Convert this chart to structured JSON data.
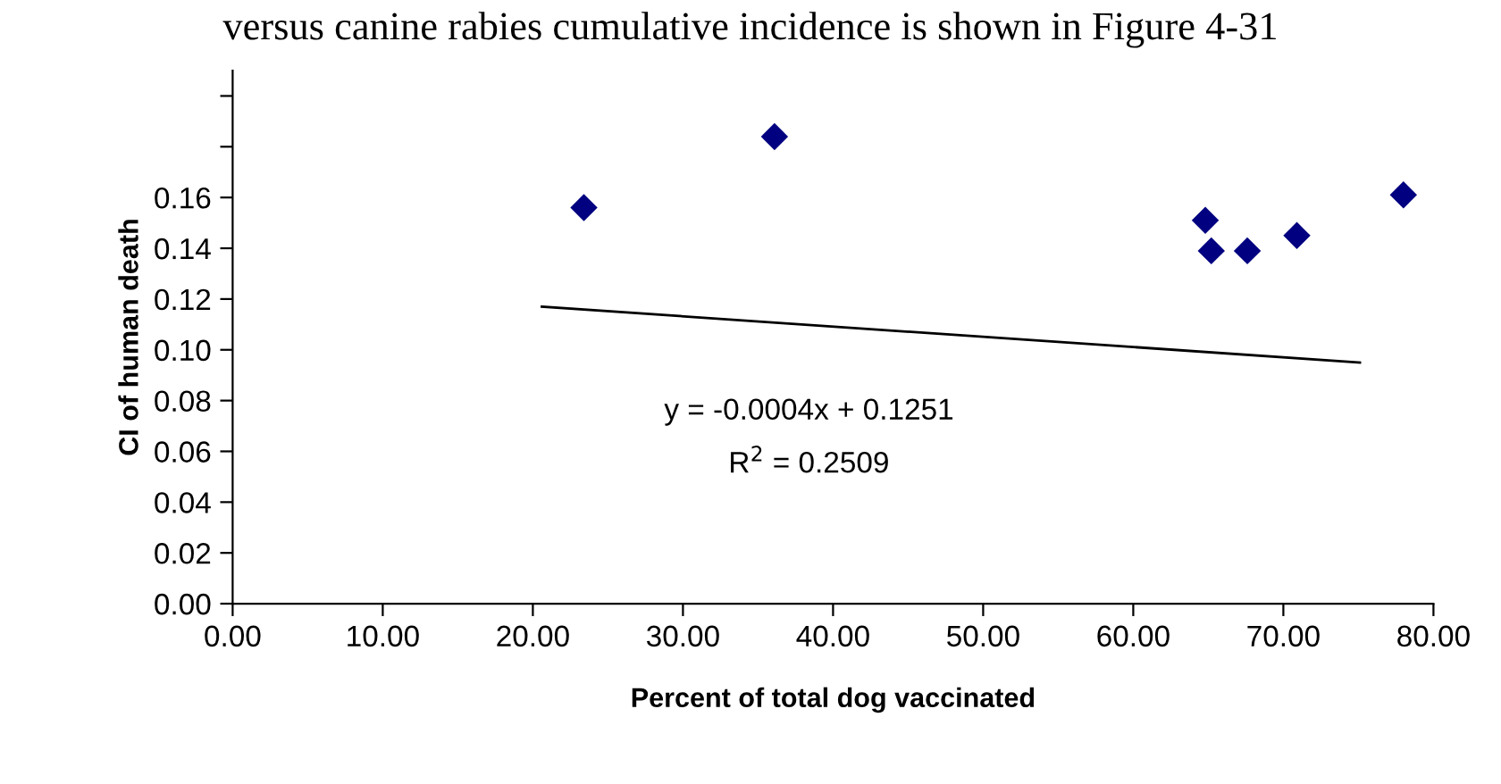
{
  "chart_data": {
    "type": "scatter",
    "xlabel": "Percent of total dog vaccinated",
    "ylabel": "CI of human death",
    "x": [
      23.4,
      36.1,
      64.8,
      65.2,
      67.6,
      70.9,
      78.0
    ],
    "series": [
      {
        "color": "#000080",
        "marker": "diamond",
        "values": [
          0.156,
          0.184,
          0.151,
          0.139,
          0.139,
          0.145,
          0.161
        ]
      },
      {
        "type": "line",
        "color": "#000000",
        "marker": "none",
        "x": [
          20.6,
          75.1
        ],
        "values": [
          0.117,
          0.095
        ]
      }
    ],
    "xlim": [
      0,
      80
    ],
    "xticks": [
      {
        "value": 0,
        "label": "0.00"
      },
      {
        "value": 10,
        "label": "10.00"
      },
      {
        "value": 20,
        "label": "20.00"
      },
      {
        "value": 30,
        "label": "30.00"
      },
      {
        "value": 40,
        "label": "40.00"
      },
      {
        "value": 50,
        "label": "50.00"
      },
      {
        "value": 60,
        "label": "60.00"
      },
      {
        "value": 70,
        "label": "70.00"
      },
      {
        "value": 80,
        "label": "80.00"
      }
    ],
    "ylim": [
      0,
      0.21
    ],
    "yticks": [
      {
        "value": 0,
        "label": "0.00"
      },
      {
        "value": 0.02,
        "label": "0.02"
      },
      {
        "value": 0.04,
        "label": "0.04"
      },
      {
        "value": 0.06,
        "label": "0.06"
      },
      {
        "value": 0.08,
        "label": "0.08"
      },
      {
        "value": 0.1,
        "label": "0.10"
      },
      {
        "value": 0.12,
        "label": "0.12"
      },
      {
        "value": 0.14,
        "label": "0.14"
      },
      {
        "value": 0.16,
        "label": "0.16"
      },
      {
        "value": 0.18,
        "label": null
      },
      {
        "value": 0.2,
        "label": null
      }
    ],
    "grid": false,
    "legend": false,
    "annotations": [
      "versus canine rabies cumulative incidence is shown in Figure 4-31",
      "y = -0.0004x + 0.1251",
      "R$^{2}$ = 0.2509"
    ]
  }
}
